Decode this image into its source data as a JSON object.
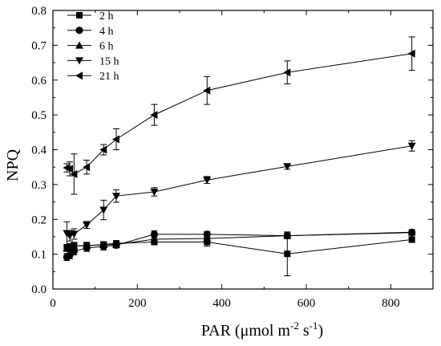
{
  "chart_data": {
    "type": "line",
    "xlabel": "PAR (μmol m⁻² s⁻¹)",
    "xlabel_parts": {
      "prefix": "PAR (μmol m",
      "sup1": "-2",
      "mid": " s",
      "sup2": "-1",
      "suffix": ")"
    },
    "ylabel": "NPQ",
    "xlim": [
      0,
      900
    ],
    "ylim": [
      0.0,
      0.8
    ],
    "xticks": [
      0,
      200,
      400,
      600,
      800
    ],
    "xtick_labels": [
      "0",
      "200",
      "400",
      "600",
      "800"
    ],
    "yticks": [
      0.0,
      0.1,
      0.2,
      0.3,
      0.4,
      0.5,
      0.6,
      0.7,
      0.8
    ],
    "ytick_labels": [
      "0.0",
      "0.1",
      "0.2",
      "0.3",
      "0.4",
      "0.5",
      "0.6",
      "0.7",
      "0.8"
    ],
    "grid": false,
    "legend_position": "top-left",
    "x": [
      33,
      40,
      50,
      80,
      120,
      150,
      240,
      365,
      555,
      850
    ],
    "series": [
      {
        "name": "2 h",
        "marker": "square",
        "values": [
          0.118,
          0.12,
          0.124,
          0.124,
          0.128,
          0.131,
          0.135,
          0.135,
          0.101,
          0.142
        ],
        "errors": [
          0.01,
          0.01,
          0.01,
          0.01,
          0.008,
          0.008,
          0.008,
          0.012,
          0.063,
          0.008
        ]
      },
      {
        "name": "4 h",
        "marker": "circle",
        "values": [
          0.092,
          0.097,
          0.108,
          0.118,
          0.122,
          0.126,
          0.157,
          0.157,
          0.153,
          0.162
        ],
        "errors": [
          0.01,
          0.01,
          0.01,
          0.01,
          0.01,
          0.008,
          0.01,
          0.008,
          0.008,
          0.006
        ]
      },
      {
        "name": "6 h",
        "marker": "triangle-up",
        "values": [
          0.118,
          0.122,
          0.124,
          0.125,
          0.127,
          0.128,
          0.143,
          0.145,
          0.153,
          0.163
        ],
        "errors": [
          0.008,
          0.008,
          0.008,
          0.008,
          0.008,
          0.008,
          0.008,
          0.008,
          0.008,
          0.008
        ]
      },
      {
        "name": "15 h",
        "marker": "triangle-down",
        "values": [
          0.16,
          0.153,
          0.158,
          0.184,
          0.227,
          0.267,
          0.279,
          0.313,
          0.352,
          0.411
        ],
        "errors": [
          0.033,
          0.015,
          0.015,
          0.01,
          0.028,
          0.018,
          0.012,
          0.01,
          0.008,
          0.015
        ]
      },
      {
        "name": "21 h",
        "marker": "triangle-left",
        "values": [
          0.348,
          0.345,
          0.33,
          0.35,
          0.4,
          0.43,
          0.5,
          0.57,
          0.622,
          0.676
        ],
        "errors": [
          0.012,
          0.02,
          0.058,
          0.02,
          0.015,
          0.03,
          0.03,
          0.04,
          0.033,
          0.048
        ]
      }
    ]
  }
}
